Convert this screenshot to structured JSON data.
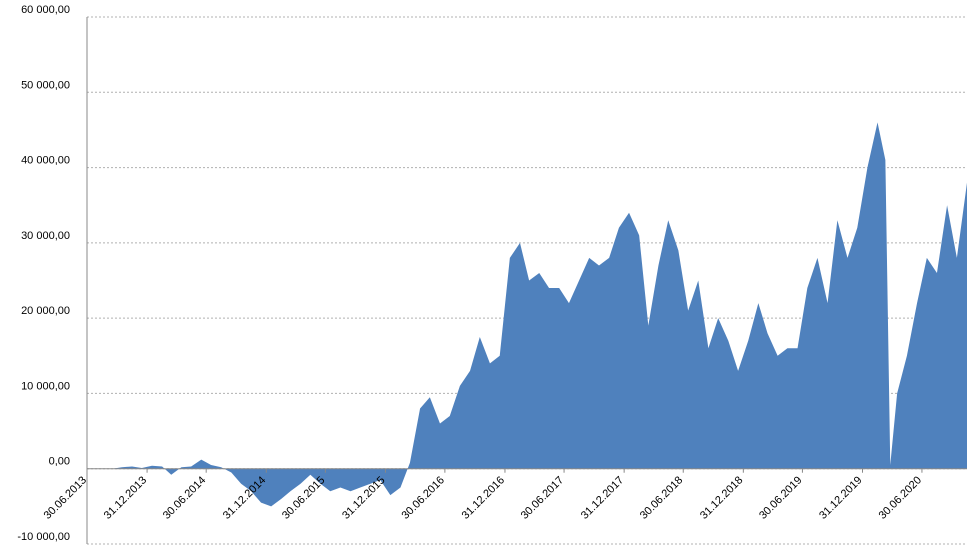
{
  "chart_data": {
    "type": "area",
    "color": "#4f81bd",
    "grid": true,
    "x": [
      "30.06.2013",
      "15.07.2013",
      "15.08.2013",
      "15.09.2013",
      "15.10.2013",
      "15.11.2013",
      "15.12.2013",
      "15.01.2014",
      "15.02.2014",
      "15.03.2014",
      "15.04.2014",
      "15.05.2014",
      "15.06.2014",
      "15.07.2014",
      "15.08.2014",
      "15.09.2014",
      "15.10.2014",
      "15.11.2014",
      "15.12.2014",
      "15.01.2015",
      "15.02.2015",
      "15.03.2015",
      "15.04.2015",
      "15.05.2015",
      "15.06.2015",
      "15.07.2015",
      "15.08.2015",
      "15.09.2015",
      "15.10.2015",
      "15.11.2015",
      "15.12.2015",
      "15.01.2016",
      "15.02.2016",
      "15.03.2016",
      "15.04.2016",
      "15.05.2016",
      "15.06.2016",
      "15.07.2016",
      "15.08.2016",
      "15.09.2016",
      "15.10.2016",
      "15.11.2016",
      "15.12.2016",
      "15.01.2017",
      "15.02.2017",
      "15.03.2017",
      "15.04.2017",
      "15.05.2017",
      "15.06.2017",
      "15.07.2017",
      "15.08.2017",
      "15.09.2017",
      "15.10.2017",
      "15.11.2017",
      "15.12.2017",
      "15.01.2018",
      "15.02.2018",
      "15.03.2018",
      "15.04.2018",
      "15.05.2018",
      "15.06.2018",
      "15.07.2018",
      "15.08.2018",
      "15.09.2018",
      "15.10.2018",
      "15.11.2018",
      "15.12.2018",
      "15.01.2019",
      "15.02.2019",
      "15.03.2019",
      "15.04.2019",
      "15.05.2019",
      "15.06.2019",
      "15.07.2019",
      "15.08.2019",
      "15.09.2019",
      "15.10.2019",
      "15.11.2019",
      "15.12.2019",
      "15.01.2020",
      "15.02.2020",
      "10.03.2020",
      "25.03.2020",
      "15.04.2020",
      "15.05.2020",
      "15.06.2020",
      "15.07.2020",
      "15.08.2020",
      "15.09.2020",
      "15.10.2020",
      "15.11.2020"
    ],
    "values": [
      0,
      0,
      0,
      0,
      200,
      300,
      100,
      400,
      300,
      -800,
      200,
      300,
      1200,
      500,
      200,
      -500,
      -2000,
      -3000,
      -4500,
      -5000,
      -4000,
      -3000,
      -2000,
      -800,
      -2000,
      -3000,
      -2500,
      -3000,
      -2500,
      -2000,
      -1500,
      -3500,
      -2500,
      800,
      8000,
      9500,
      6000,
      7000,
      11000,
      13000,
      17500,
      14000,
      15000,
      28000,
      30000,
      25000,
      26000,
      24000,
      24000,
      22000,
      25000,
      28000,
      27000,
      28000,
      32000,
      34000,
      31000,
      19000,
      27000,
      33000,
      29000,
      21000,
      25000,
      16000,
      20000,
      17000,
      13000,
      17000,
      22000,
      18000,
      15000,
      16000,
      16000,
      24000,
      28000,
      22000,
      33000,
      28000,
      32000,
      40000,
      46000,
      41000,
      500,
      10000,
      15000,
      22000,
      28000,
      26000,
      35000,
      28000,
      38000
    ],
    "xlim": [
      "30.06.2013",
      "15.11.2020"
    ],
    "xticks": [
      "30.06.2013",
      "31.12.2013",
      "30.06.2014",
      "31.12.2014",
      "30.06.2015",
      "31.12.2015",
      "30.06.2016",
      "31.12.2016",
      "30.06.2017",
      "31.12.2017",
      "30.06.2018",
      "31.12.2018",
      "30.06.2019",
      "31.12.2019",
      "30.06.2020"
    ],
    "ylim": [
      -10000,
      60000
    ],
    "yticks": [
      {
        "value": -10000,
        "label": "-10 000,00"
      },
      {
        "value": 0,
        "label": "0,00"
      },
      {
        "value": 10000,
        "label": "10 000,00"
      },
      {
        "value": 20000,
        "label": "20 000,00"
      },
      {
        "value": 30000,
        "label": "30 000,00"
      },
      {
        "value": 40000,
        "label": "40 000,00"
      },
      {
        "value": 50000,
        "label": "50 000,00"
      },
      {
        "value": 60000,
        "label": "60 000,00"
      }
    ]
  }
}
